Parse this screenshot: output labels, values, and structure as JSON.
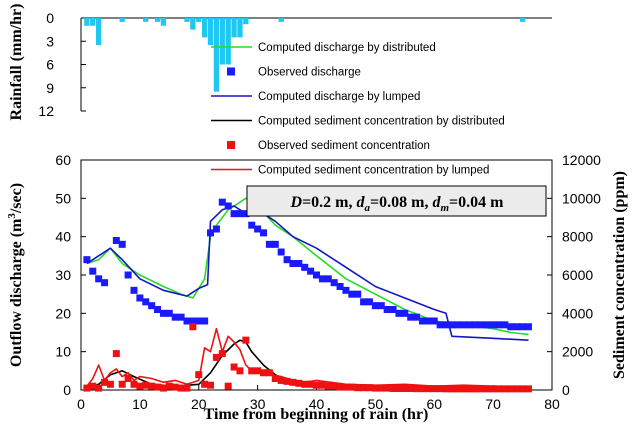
{
  "chart_data": {
    "type": "line",
    "x_axis": {
      "label": "Time from beginning of rain (hr)",
      "range": [
        0,
        80
      ],
      "ticks": [
        "0",
        "10",
        "20",
        "30",
        "40",
        "50",
        "60",
        "70",
        "80"
      ]
    },
    "rainfall_axis": {
      "label": "Rainfall (mm/hr)",
      "range": [
        0,
        12
      ],
      "inverted": true,
      "ticks": [
        "0",
        "3",
        "6",
        "9",
        "12"
      ]
    },
    "discharge_axis": {
      "label_parts": [
        "Outflow discharge (m",
        "3",
        "/sec)"
      ],
      "range": [
        0,
        60
      ],
      "ticks": [
        "0",
        "10",
        "20",
        "30",
        "40",
        "50",
        "60"
      ]
    },
    "sediment_axis": {
      "label": "Sediment concentration (ppm)",
      "range": [
        0,
        12000
      ],
      "ticks": [
        "0",
        "2000",
        "4000",
        "6000",
        "8000",
        "10000",
        "12000"
      ]
    },
    "legend": [
      {
        "label": "Computed discharge by distributed",
        "kind": "line",
        "color": "#22dd22"
      },
      {
        "label": "Observed discharge",
        "kind": "marker",
        "color": "#1a1aff"
      },
      {
        "label": "Computed discharge by lumped",
        "kind": "line",
        "color": "#1515c8"
      },
      {
        "label": "Computed sediment concentration by distributed",
        "kind": "line",
        "color": "#000000"
      },
      {
        "label": "Observed sediment concentration",
        "kind": "marker",
        "color": "#ee1111"
      },
      {
        "label": "Computed sediment concentration by lumped",
        "kind": "line",
        "color": "#ee1111"
      }
    ],
    "parameters": [
      {
        "sym": "D",
        "sub": "",
        "value": "=0.2 m, "
      },
      {
        "sym": "d",
        "sub": "a",
        "value": "=0.08 m, "
      },
      {
        "sym": "d",
        "sub": "m",
        "value": "=0.04 m"
      }
    ],
    "rainfall": {
      "color": "#1ec8f0",
      "x": [
        1,
        2,
        3,
        7,
        11,
        13,
        14,
        18,
        19,
        20,
        21,
        22,
        23,
        24,
        25,
        26,
        27,
        28,
        34,
        75
      ],
      "values": [
        1,
        1,
        3.5,
        0.5,
        0.5,
        0.5,
        1,
        0.5,
        1.5,
        0.5,
        2.5,
        3.5,
        9.5,
        6,
        6,
        2.5,
        2.5,
        0.8,
        0.5,
        0.5
      ]
    },
    "series": [
      {
        "name": "Computed discharge by distributed",
        "axis": "discharge",
        "style": "line",
        "color": "#22dd22",
        "x": [
          1,
          3,
          5,
          7,
          10,
          14,
          17,
          19,
          21,
          22,
          23,
          25,
          27,
          28,
          30,
          33,
          36,
          40,
          45,
          50,
          55,
          60,
          65,
          70,
          73,
          76
        ],
        "values": [
          33,
          34,
          37,
          33,
          30,
          27,
          25,
          24,
          29,
          40,
          43,
          47,
          49,
          50,
          48,
          43,
          40,
          35,
          29,
          25,
          21,
          18,
          17,
          16,
          15,
          14.5
        ]
      },
      {
        "name": "Computed discharge by lumped",
        "axis": "discharge",
        "style": "line",
        "color": "#1515c8",
        "x": [
          1,
          3,
          5,
          7,
          10,
          14,
          18,
          20,
          21.5,
          22,
          24,
          26,
          27,
          28,
          30,
          33,
          36,
          40,
          45,
          50,
          55,
          60,
          62,
          63,
          70,
          76
        ],
        "values": [
          33,
          35,
          37,
          34,
          29,
          26,
          24.5,
          26.5,
          27.5,
          44,
          47,
          48,
          47,
          46,
          47,
          44,
          40,
          37,
          32,
          27,
          24,
          21,
          20,
          14,
          13.5,
          13
        ]
      },
      {
        "name": "Observed discharge",
        "axis": "discharge",
        "style": "markers",
        "color": "#1a1aff",
        "x": [
          1,
          2,
          3,
          4,
          6,
          7,
          8,
          9,
          10,
          11,
          12,
          13,
          14,
          15,
          16,
          17,
          18,
          19,
          20,
          21,
          22,
          23,
          24,
          25,
          26,
          27,
          28,
          29,
          30,
          31,
          32,
          33,
          34,
          35,
          36,
          37,
          38,
          39,
          40,
          41,
          42,
          43,
          44,
          45,
          46,
          47,
          48,
          49,
          50,
          51,
          52,
          53,
          54,
          55,
          56,
          57,
          58,
          59,
          60,
          61,
          62,
          63,
          64,
          65,
          66,
          67,
          68,
          69,
          70,
          71,
          72,
          73,
          74,
          75,
          76
        ],
        "values": [
          34,
          31,
          29,
          28,
          39,
          38,
          30,
          26,
          24,
          23,
          22,
          21,
          20,
          20,
          19,
          19,
          18,
          18,
          18,
          18,
          41,
          42,
          49,
          48,
          46,
          46,
          46,
          43,
          42,
          41,
          38,
          38,
          36,
          34,
          33,
          33,
          32,
          31,
          30,
          29,
          29,
          28,
          27,
          26,
          25,
          25,
          23,
          23,
          22,
          22,
          21,
          21,
          20,
          20,
          19,
          19,
          18,
          18,
          18,
          17,
          17,
          17,
          17,
          17,
          17,
          17,
          17,
          17,
          17,
          17,
          17,
          16.5,
          16.5,
          16.5,
          16.5
        ]
      },
      {
        "name": "Computed sediment concentration by distributed",
        "axis": "sediment",
        "style": "line",
        "color": "#000000",
        "x": [
          1,
          3,
          5,
          7,
          9,
          12,
          16,
          20,
          22,
          24,
          26,
          27,
          28,
          29,
          31,
          33,
          35,
          40,
          50,
          60,
          70,
          76
        ],
        "values": [
          100,
          300,
          800,
          1000,
          700,
          300,
          200,
          300,
          900,
          1800,
          2400,
          2600,
          2500,
          2000,
          1300,
          800,
          400,
          200,
          120,
          90,
          80,
          70
        ]
      },
      {
        "name": "Computed sediment concentration by lumped",
        "axis": "sediment",
        "style": "line",
        "color": "#ee1111",
        "x": [
          1,
          2,
          3,
          4,
          5,
          6,
          7,
          8,
          9,
          10,
          12,
          14,
          16,
          18,
          20,
          21,
          22,
          23,
          24,
          25,
          26,
          27,
          28,
          29,
          30,
          32,
          34,
          36,
          38,
          40,
          45,
          50,
          55,
          60,
          65,
          70,
          76
        ],
        "values": [
          200,
          600,
          1300,
          500,
          900,
          1100,
          700,
          900,
          500,
          700,
          600,
          400,
          500,
          300,
          500,
          2200,
          2000,
          3200,
          2000,
          2800,
          2500,
          2100,
          1300,
          1000,
          1000,
          800,
          700,
          500,
          400,
          500,
          300,
          250,
          300,
          200,
          250,
          200,
          150
        ]
      },
      {
        "name": "Observed sediment concentration",
        "axis": "sediment",
        "style": "markers",
        "color": "#ee1111",
        "x": [
          1,
          2,
          3,
          4,
          5,
          6,
          7,
          8,
          9,
          10,
          11,
          12,
          13,
          14,
          15,
          16,
          17,
          18,
          19,
          20,
          21,
          22,
          23,
          24,
          25,
          26,
          27,
          28,
          29,
          30,
          31,
          32,
          33,
          34,
          35,
          36,
          37,
          38,
          39,
          40,
          41,
          42,
          43,
          44,
          45,
          46,
          47,
          48,
          49,
          50,
          51,
          52,
          53,
          54,
          55,
          56,
          57,
          58,
          59,
          60,
          61,
          62,
          63,
          64,
          65,
          66,
          67,
          68,
          69,
          70,
          71,
          72,
          73,
          74,
          75,
          76
        ],
        "values": [
          100,
          200,
          100,
          400,
          300,
          1900,
          300,
          600,
          300,
          200,
          250,
          200,
          150,
          100,
          200,
          150,
          100,
          100,
          3300,
          800,
          300,
          250,
          1700,
          1900,
          200,
          1200,
          1000,
          2600,
          1000,
          1000,
          900,
          900,
          600,
          500,
          450,
          400,
          350,
          300,
          300,
          250,
          250,
          200,
          200,
          150,
          150,
          150,
          120,
          120,
          120,
          100,
          100,
          100,
          80,
          80,
          80,
          80,
          70,
          70,
          70,
          70,
          70,
          60,
          60,
          60,
          60,
          60,
          60,
          60,
          60,
          60,
          60,
          60,
          60,
          60,
          60,
          60
        ]
      }
    ]
  }
}
